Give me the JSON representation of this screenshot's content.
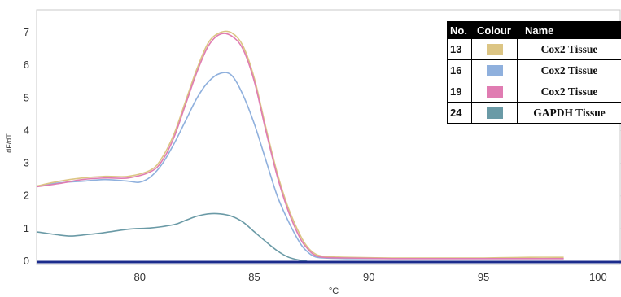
{
  "chart_data": {
    "type": "line",
    "xlabel": "°C",
    "ylabel": "dF/dT",
    "xlim": [
      75.5,
      101
    ],
    "ylim": [
      -0.1,
      7.7
    ],
    "xticks": [
      80,
      85,
      90,
      95,
      100
    ],
    "yticks": [
      0,
      1,
      2,
      3,
      4,
      5,
      6,
      7
    ],
    "grid": true,
    "legend": {
      "placement": "top-right",
      "headers": [
        "No.",
        "Colour",
        "Name"
      ]
    },
    "series": [
      {
        "no": "13",
        "name": "Cox2 Tissue",
        "color": "#dcc584",
        "x": [
          75.5,
          76.5,
          77.5,
          78.5,
          79.5,
          80.5,
          81.0,
          81.5,
          82.0,
          82.5,
          83.0,
          83.5,
          84.0,
          84.5,
          85.0,
          85.5,
          86.0,
          86.5,
          87.0,
          87.3,
          87.6,
          88.0,
          89.0,
          91.0,
          93.0,
          95.0,
          97.0,
          98.5
        ],
        "y": [
          2.3,
          2.45,
          2.55,
          2.6,
          2.6,
          2.8,
          3.2,
          3.9,
          4.9,
          5.9,
          6.7,
          7.0,
          7.0,
          6.6,
          5.6,
          4.1,
          2.7,
          1.6,
          0.8,
          0.45,
          0.25,
          0.15,
          0.12,
          0.1,
          0.1,
          0.1,
          0.12,
          0.12
        ]
      },
      {
        "no": "16",
        "name": "Cox2 Tissue",
        "color": "#8fb0dd",
        "x": [
          75.5,
          76.5,
          77.5,
          78.5,
          79.5,
          80.0,
          80.5,
          81.0,
          81.5,
          82.0,
          82.5,
          83.0,
          83.5,
          84.0,
          84.5,
          85.0,
          85.5,
          86.0,
          86.5,
          87.0,
          87.3,
          87.6,
          88.0,
          89.0,
          91.0,
          93.0,
          95.0,
          97.0,
          98.5
        ],
        "y": [
          2.3,
          2.4,
          2.45,
          2.5,
          2.45,
          2.42,
          2.6,
          3.0,
          3.6,
          4.3,
          5.0,
          5.5,
          5.75,
          5.7,
          5.1,
          4.2,
          3.1,
          2.0,
          1.2,
          0.55,
          0.3,
          0.15,
          0.1,
          0.08,
          0.08,
          0.08,
          0.08,
          0.08,
          0.08
        ]
      },
      {
        "no": "19",
        "name": "Cox2 Tissue",
        "color": "#e07cb2",
        "x": [
          75.5,
          76.5,
          77.5,
          78.5,
          79.5,
          80.5,
          81.0,
          81.5,
          82.0,
          82.5,
          83.0,
          83.5,
          84.0,
          84.5,
          85.0,
          85.5,
          86.0,
          86.5,
          87.0,
          87.3,
          87.6,
          88.0,
          89.0,
          91.0,
          93.0,
          95.0,
          97.0,
          98.5
        ],
        "y": [
          2.28,
          2.38,
          2.5,
          2.55,
          2.55,
          2.75,
          3.1,
          3.8,
          4.8,
          5.8,
          6.6,
          6.95,
          6.9,
          6.5,
          5.5,
          4.0,
          2.6,
          1.5,
          0.7,
          0.4,
          0.2,
          0.12,
          0.1,
          0.08,
          0.08,
          0.08,
          0.08,
          0.08
        ]
      },
      {
        "no": "24",
        "name": "GAPDH Tissue",
        "color": "#6a9aa6",
        "x": [
          75.5,
          76.5,
          77.0,
          77.5,
          78.5,
          79.5,
          80.5,
          81.5,
          82.0,
          82.5,
          83.0,
          83.5,
          84.0,
          84.5,
          85.0,
          85.5,
          86.0,
          86.5,
          87.0,
          87.3
        ],
        "y": [
          0.9,
          0.8,
          0.77,
          0.8,
          0.88,
          0.98,
          1.02,
          1.12,
          1.25,
          1.38,
          1.45,
          1.45,
          1.38,
          1.2,
          0.9,
          0.6,
          0.32,
          0.12,
          0.03,
          0.0
        ]
      }
    ],
    "baseline_color": "#1c2c8c"
  }
}
